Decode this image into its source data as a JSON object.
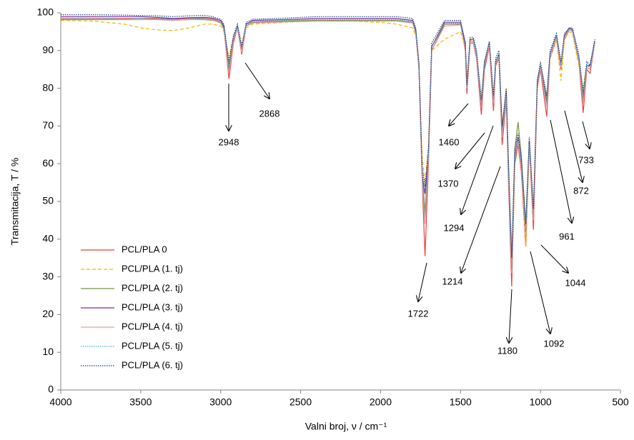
{
  "chart_data": {
    "type": "line",
    "x_label": "Valni broj, ν / cm⁻¹",
    "y_label": "Transmitacija, T / %",
    "xlim": [
      4000,
      500
    ],
    "xticks": [
      4000,
      3500,
      3000,
      2500,
      2000,
      1500,
      1000,
      500
    ],
    "ylim": [
      0,
      100
    ],
    "yticks": [
      0,
      10,
      20,
      30,
      40,
      50,
      60,
      70,
      80,
      90,
      100
    ],
    "grid": false,
    "legend": "lower left",
    "x": [
      4000,
      3800,
      3600,
      3500,
      3400,
      3300,
      3200,
      3100,
      3050,
      3000,
      2980,
      2948,
      2920,
      2895,
      2868,
      2840,
      2800,
      2600,
      2400,
      2200,
      2000,
      1900,
      1800,
      1780,
      1760,
      1740,
      1722,
      1700,
      1680,
      1600,
      1500,
      1470,
      1460,
      1440,
      1420,
      1400,
      1370,
      1350,
      1320,
      1294,
      1280,
      1260,
      1240,
      1214,
      1200,
      1180,
      1160,
      1140,
      1120,
      1092,
      1070,
      1044,
      1020,
      1000,
      961,
      940,
      900,
      872,
      850,
      820,
      800,
      760,
      733,
      710,
      690,
      660
    ],
    "series": [
      {
        "name": "PCL/PLA 0",
        "color": "#e8413c",
        "dash": "solid",
        "values": [
          98.5,
          98.5,
          98.5,
          98.5,
          98.5,
          98.3,
          98.5,
          98.5,
          98.3,
          97.5,
          96,
          82.5,
          92,
          96,
          89,
          96.5,
          97.5,
          97.8,
          98,
          98,
          98,
          98,
          97.5,
          95,
          85,
          56,
          35.5,
          60,
          90,
          97,
          97,
          90,
          78.5,
          92,
          92,
          88,
          73,
          85,
          91,
          74,
          86,
          88,
          65,
          77,
          55,
          27.5,
          60,
          65,
          58,
          38,
          65,
          42.5,
          80,
          85,
          72.5,
          88,
          93,
          85,
          93,
          95.5,
          95,
          87,
          73.5,
          85,
          84,
          92
        ]
      },
      {
        "name": "PCL/PLA (1. tj)",
        "color": "#f5b800",
        "dash": "dashed",
        "values": [
          98,
          97.8,
          97,
          96,
          95.5,
          95.3,
          96,
          97,
          97,
          96.5,
          95,
          88,
          94,
          96,
          92,
          96,
          97,
          97.5,
          97.8,
          97.8,
          97.5,
          97,
          96,
          94,
          86,
          62,
          55,
          65,
          90,
          93,
          95,
          91,
          82,
          93,
          92,
          89,
          77,
          87,
          91,
          78,
          87,
          88,
          68,
          80,
          58,
          35,
          62,
          66,
          60,
          38,
          64,
          45,
          81,
          86,
          78,
          88,
          93,
          82,
          93,
          95,
          94.5,
          86,
          80,
          86,
          85,
          92
        ]
      },
      {
        "name": "PCL/PLA (2. tj)",
        "color": "#77933c",
        "dash": "solid",
        "values": [
          98.2,
          98.2,
          98.2,
          98.2,
          98.3,
          98,
          98.2,
          98.2,
          98,
          97.5,
          96,
          86,
          93,
          96,
          90,
          96.5,
          97.5,
          97.8,
          98,
          98,
          98,
          98,
          97.5,
          95,
          86,
          58,
          47,
          63,
          91,
          97,
          97,
          91,
          81,
          93,
          93,
          89,
          76,
          87,
          92,
          77,
          87,
          89,
          70,
          79,
          60,
          34,
          64,
          71,
          62,
          44,
          66,
          47,
          82,
          86,
          77,
          89,
          94,
          86,
          94,
          95.5,
          95,
          88,
          78,
          86,
          86,
          92
        ]
      },
      {
        "name": "PCL/PLA (3. tj)",
        "color": "#7030a0",
        "dash": "solid",
        "values": [
          99,
          99,
          99,
          99,
          98.8,
          98.5,
          98.7,
          98.8,
          98.6,
          98,
          96.5,
          85,
          93,
          96.5,
          90,
          97,
          98,
          98.2,
          98.5,
          98.5,
          98.5,
          98.5,
          98,
          95.5,
          86,
          57,
          52,
          62,
          91,
          97.5,
          97.5,
          92,
          80,
          93,
          93,
          89,
          75,
          86,
          92,
          76,
          87,
          89,
          68,
          79,
          58,
          33,
          62,
          67,
          60,
          42,
          66,
          46,
          81,
          86,
          76,
          89,
          94,
          86,
          94,
          96,
          95.5,
          88,
          77,
          86,
          86,
          92.5
        ]
      },
      {
        "name": "PCL/PLA (4. tj)",
        "color": "#e6a0a0",
        "dash": "solid",
        "values": [
          98.4,
          98.4,
          98.3,
          98.2,
          98.2,
          98,
          98.2,
          98.3,
          98.1,
          97.3,
          95.5,
          84,
          92.5,
          96,
          89.5,
          96.5,
          97.3,
          97.6,
          97.8,
          97.8,
          97.8,
          97.8,
          97.3,
          94.5,
          85,
          56,
          44,
          61,
          90,
          96.5,
          96.8,
          90.5,
          80,
          92.5,
          92.5,
          88.5,
          75,
          86,
          91.5,
          76,
          86.5,
          88.5,
          67,
          78,
          57,
          31,
          61,
          66,
          59,
          41,
          65,
          45,
          80.5,
          85.5,
          75,
          88.5,
          93.5,
          85.5,
          93.5,
          95.5,
          95,
          87.5,
          76,
          85.5,
          85,
          92
        ]
      },
      {
        "name": "PCL/PLA (5. tj)",
        "color": "#4bacc6",
        "dash": "dotted",
        "values": [
          98.6,
          98.6,
          98.5,
          98.5,
          98.5,
          98.3,
          98.5,
          98.6,
          98.4,
          97.7,
          96,
          85.5,
          93,
          96.3,
          90.5,
          96.8,
          97.7,
          98,
          98.2,
          98.2,
          98.2,
          98.2,
          97.7,
          95,
          86,
          57,
          46,
          62,
          91,
          97.2,
          97.3,
          91,
          80.5,
          93,
          93,
          89,
          75.5,
          86.5,
          92,
          77,
          87,
          89,
          68,
          79,
          58,
          32,
          62,
          67,
          60,
          42,
          65.5,
          46,
          81,
          86,
          76,
          89,
          94,
          86,
          94,
          95.8,
          95.3,
          88,
          77,
          86,
          85.5,
          92.5
        ]
      },
      {
        "name": "PCL/PLA (6. tj)",
        "color": "#1f3d7a",
        "dash": "dotted",
        "values": [
          99.5,
          99.5,
          99.4,
          99.3,
          99.2,
          99,
          99.2,
          99.3,
          99,
          98.3,
          97,
          87,
          94,
          97,
          91,
          97.5,
          98.3,
          98.6,
          99,
          99,
          99,
          99,
          98.5,
          96,
          87,
          59,
          54,
          64,
          92,
          98,
          98,
          92,
          81,
          93.5,
          93.5,
          90,
          77,
          87,
          92.5,
          78,
          88,
          90,
          70,
          80,
          60,
          35,
          64,
          68,
          62,
          44,
          67,
          48,
          82,
          87,
          78,
          90,
          94.5,
          87,
          94.5,
          96,
          96,
          89,
          79,
          87,
          86,
          93
        ]
      }
    ],
    "annotations": [
      "2948",
      "2868",
      "1460",
      "1370",
      "1294",
      "1214",
      "1722",
      "1180",
      "1092",
      "1044",
      "961",
      "872",
      "733"
    ]
  }
}
